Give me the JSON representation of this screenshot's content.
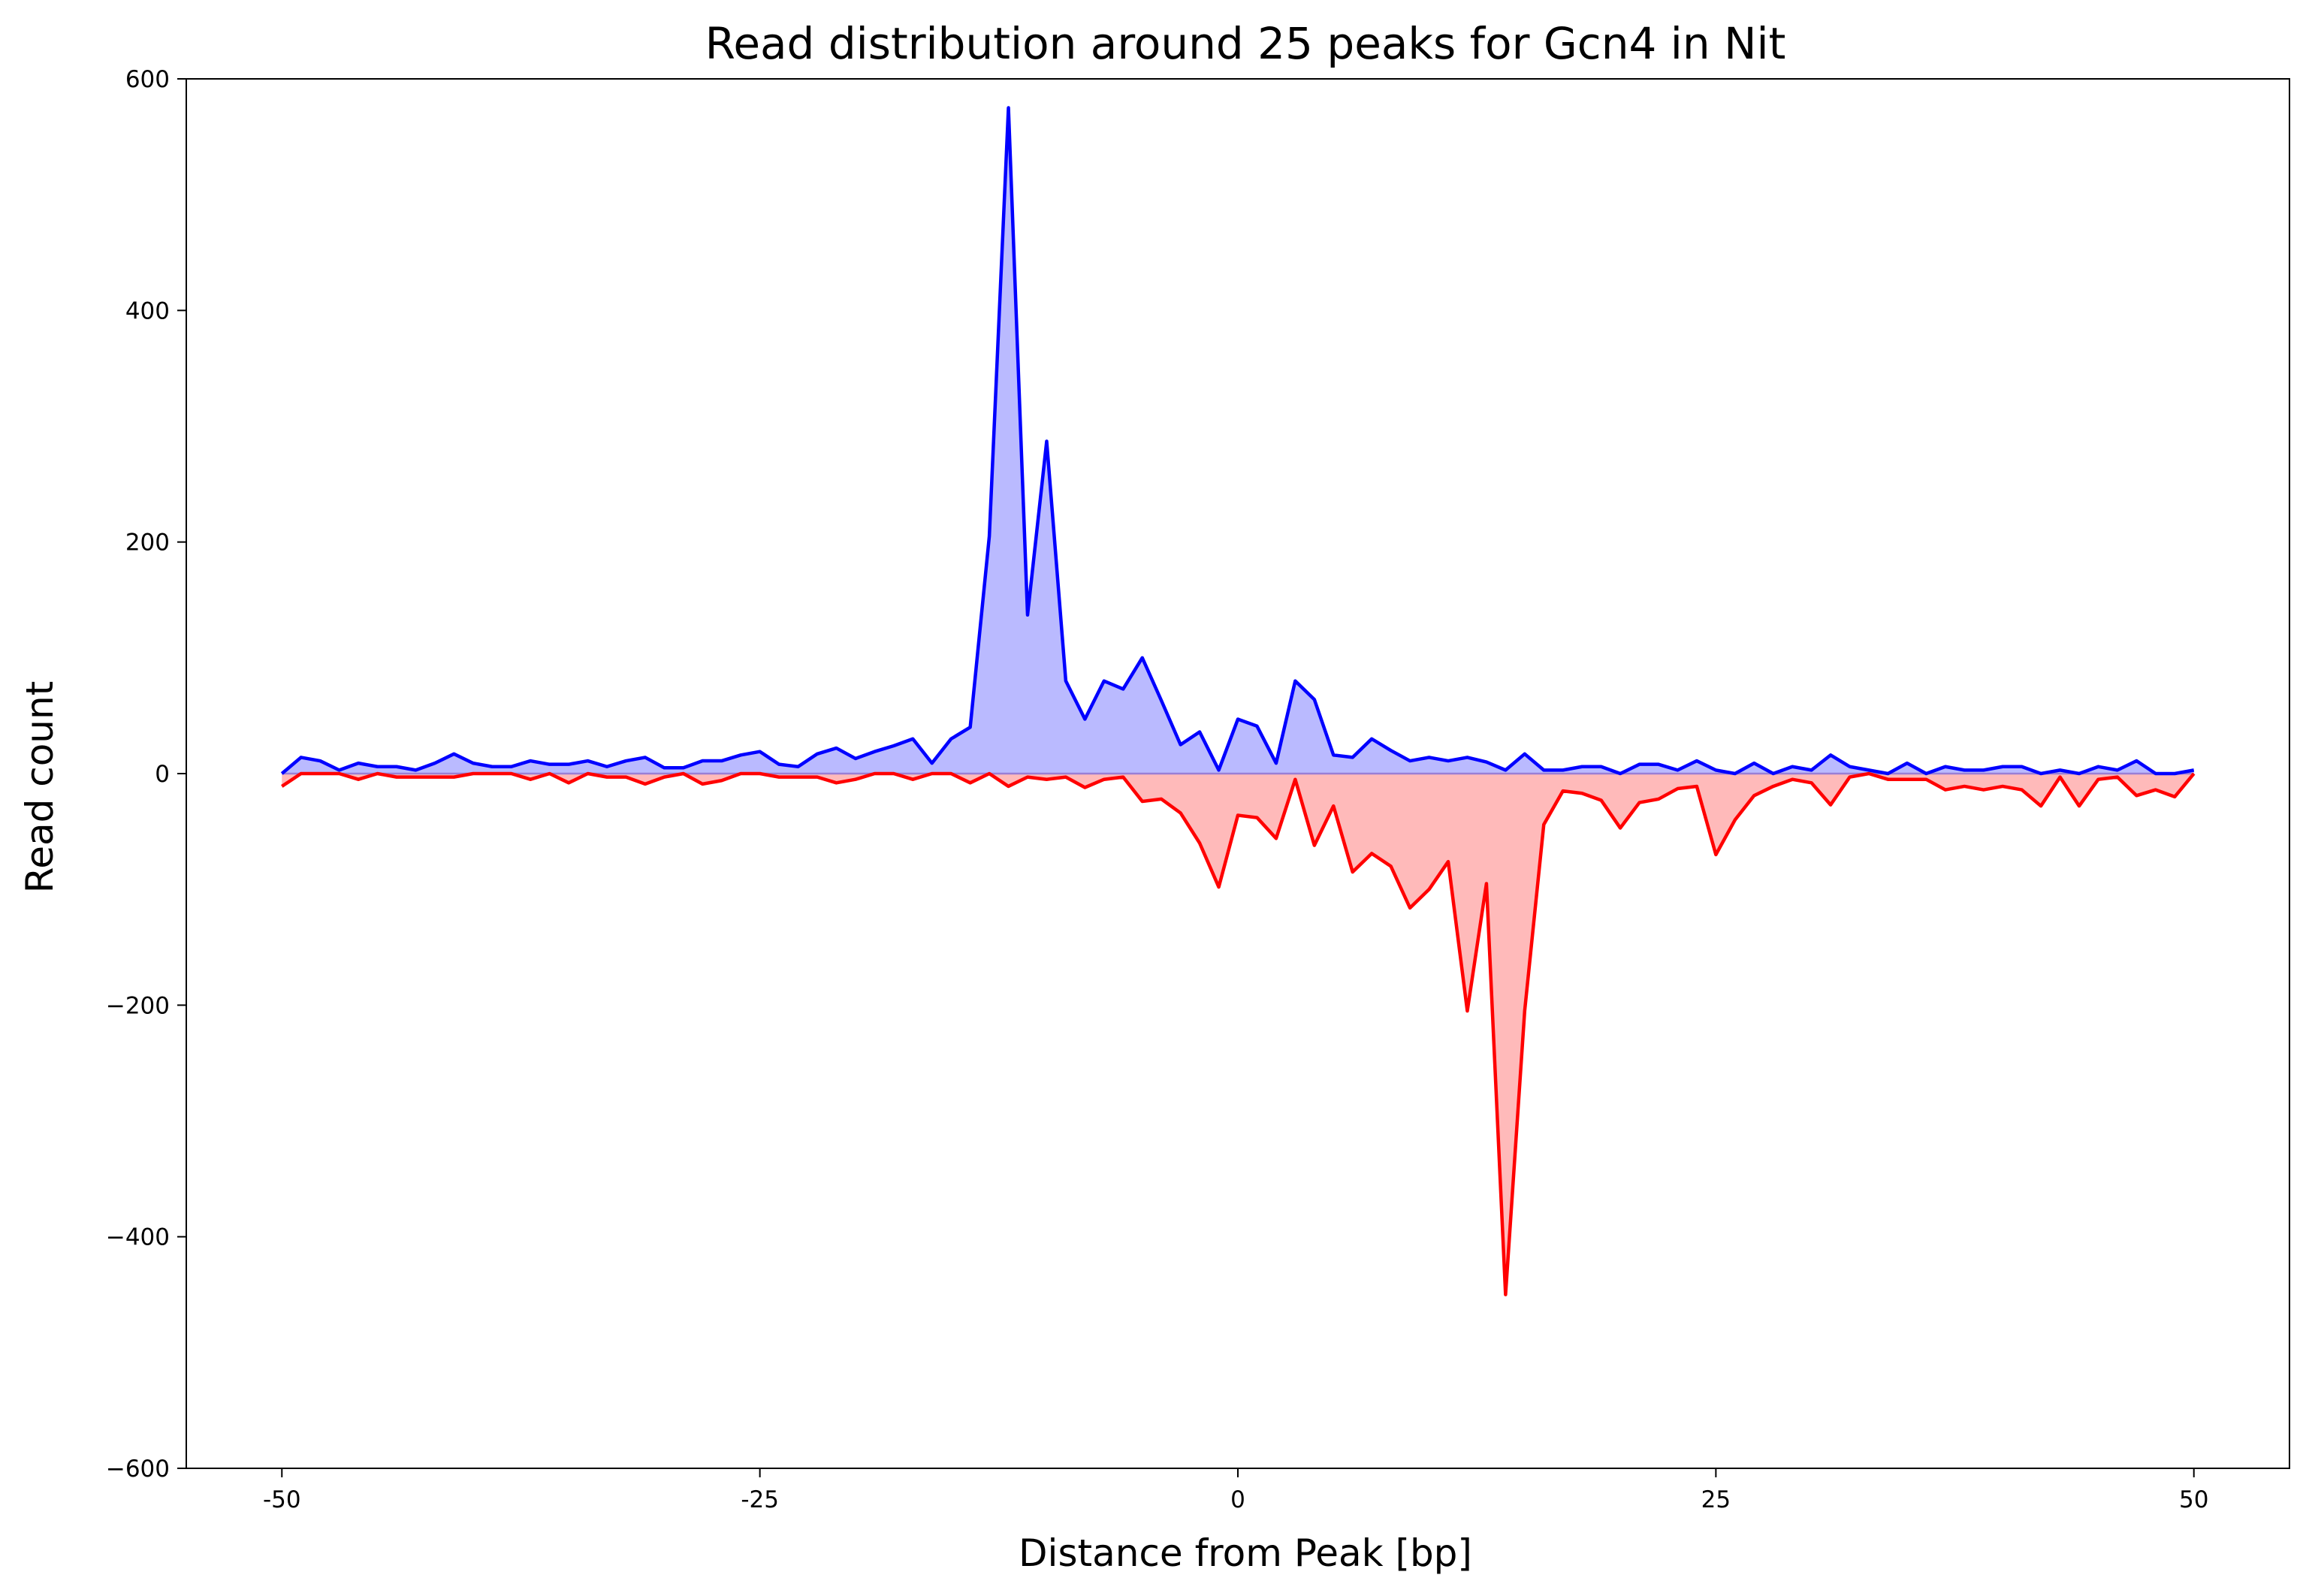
{
  "chart_data": {
    "type": "area",
    "title": "Read distribution around 25 peaks for Gcn4 in Nit",
    "xlabel": "Distance from Peak [bp]",
    "ylabel": "Read count",
    "xlim": [
      -55,
      55
    ],
    "ylim": [
      -600,
      600
    ],
    "xticks": [
      -50,
      -25,
      0,
      25,
      50
    ],
    "xtick_labels": [
      "-50",
      "-25",
      "0",
      "25",
      "50"
    ],
    "yticks": [
      600,
      400,
      200,
      0,
      -200,
      -400,
      -600
    ],
    "ytick_labels": [
      "600",
      "400",
      "200",
      "0",
      "−200",
      "−400",
      "−600"
    ],
    "grid": false,
    "legend": "none",
    "x": [
      -50,
      -49,
      -48,
      -47,
      -46,
      -45,
      -44,
      -43,
      -42,
      -41,
      -40,
      -39,
      -38,
      -37,
      -36,
      -35,
      -34,
      -33,
      -32,
      -31,
      -30,
      -29,
      -28,
      -27,
      -26,
      -25,
      -24,
      -23,
      -22,
      -21,
      -20,
      -19,
      -18,
      -17,
      -16,
      -15,
      -14,
      -13,
      -12,
      -11,
      -10,
      -9,
      -8,
      -7,
      -6,
      -5,
      -4,
      -3,
      -2,
      -1,
      0,
      1,
      2,
      3,
      4,
      5,
      6,
      7,
      8,
      9,
      10,
      11,
      12,
      13,
      14,
      15,
      16,
      17,
      18,
      19,
      20,
      21,
      22,
      23,
      24,
      25,
      26,
      27,
      28,
      29,
      30,
      31,
      32,
      33,
      34,
      35,
      36,
      37,
      38,
      39,
      40,
      41,
      42,
      43,
      44,
      45,
      46,
      47,
      48,
      49,
      50
    ],
    "series": [
      {
        "color": "#0000ff",
        "fill": "#babaff",
        "values": [
          0,
          14,
          11,
          3,
          9,
          6,
          6,
          3,
          9,
          17,
          9,
          6,
          6,
          11,
          8,
          8,
          11,
          6,
          11,
          14,
          5,
          5,
          11,
          11,
          16,
          19,
          8,
          6,
          17,
          22,
          13,
          19,
          24,
          30,
          9,
          30,
          40,
          205,
          575,
          137,
          287,
          80,
          47,
          80,
          73,
          100,
          63,
          25,
          36,
          3,
          47,
          41,
          9,
          80,
          64,
          16,
          14,
          30,
          20,
          11,
          14,
          11,
          14,
          10,
          3,
          17,
          3,
          3,
          6,
          6,
          0,
          8,
          8,
          3,
          11,
          3,
          0,
          9,
          0,
          6,
          3,
          16,
          6,
          3,
          0,
          9,
          0,
          6,
          3,
          3,
          6,
          6,
          0,
          3,
          0,
          6,
          3,
          11,
          0,
          0,
          3
        ]
      },
      {
        "color": "#ff0000",
        "fill": "#ffbaba",
        "values": [
          -11,
          0,
          0,
          0,
          -5,
          0,
          -3,
          -3,
          -3,
          -3,
          0,
          0,
          0,
          -5,
          0,
          -8,
          0,
          -3,
          -3,
          -9,
          -3,
          0,
          -9,
          -6,
          0,
          0,
          -3,
          -3,
          -3,
          -8,
          -5,
          0,
          0,
          -5,
          0,
          0,
          -8,
          0,
          -11,
          -3,
          -5,
          -3,
          -12,
          -5,
          -3,
          -24,
          -22,
          -34,
          -60,
          -98,
          -36,
          -38,
          -56,
          -5,
          -62,
          -28,
          -85,
          -69,
          -80,
          -116,
          -100,
          -76,
          -205,
          -95,
          -450,
          -205,
          -44,
          -15,
          -17,
          -23,
          -47,
          -25,
          -22,
          -13,
          -11,
          -70,
          -40,
          -19,
          -11,
          -5,
          -8,
          -27,
          -3,
          0,
          -5,
          -5,
          -5,
          -14,
          -11,
          -14,
          -11,
          -14,
          -28,
          -3,
          -28,
          -5,
          -3,
          -19,
          -14,
          -20,
          0
        ]
      }
    ]
  }
}
